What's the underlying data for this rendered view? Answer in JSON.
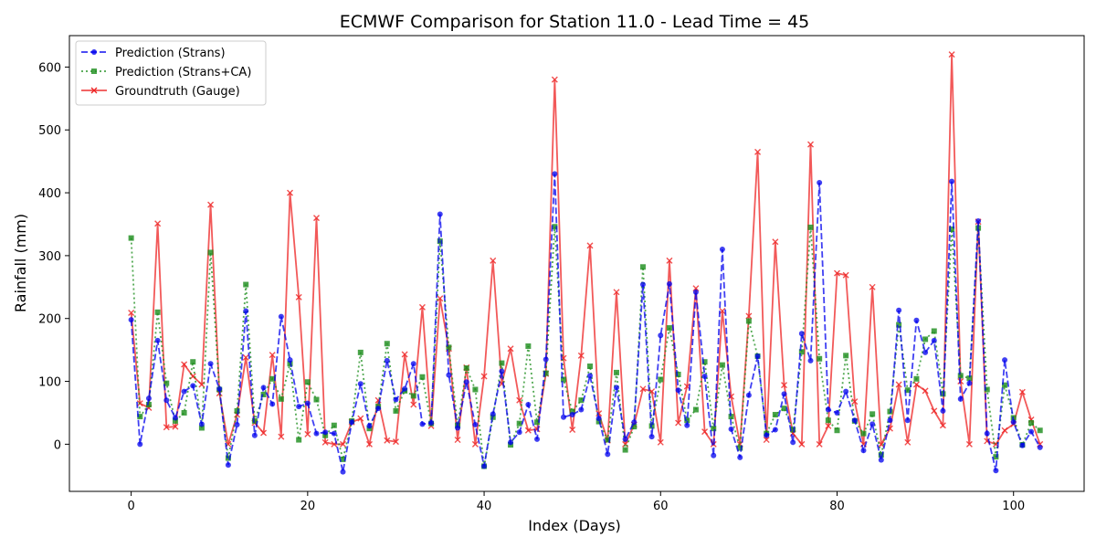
{
  "chart_data": {
    "type": "line",
    "title": "ECMWF Comparison for Station 11.0 - Lead Time = 45",
    "xlabel": "Index (Days)",
    "ylabel": "Rainfall (mm)",
    "xlim": [
      -7,
      108
    ],
    "ylim": [
      -75,
      650
    ],
    "xticks": [
      0,
      20,
      40,
      60,
      80,
      100
    ],
    "yticks": [
      0,
      100,
      200,
      300,
      400,
      500,
      600
    ],
    "grid": false,
    "legend_position": "upper-left",
    "series": [
      {
        "name": "Prediction (Strans)",
        "color": "#0000ee",
        "style": "dashed",
        "marker": "circle",
        "values": [
          198,
          0,
          73,
          165,
          70,
          42,
          84,
          93,
          32,
          128,
          88,
          -33,
          31,
          212,
          14,
          90,
          64,
          203,
          134,
          60,
          65,
          17,
          19,
          17,
          -44,
          35,
          96,
          29,
          57,
          133,
          71,
          88,
          128,
          32,
          34,
          366,
          110,
          26,
          99,
          31,
          -35,
          48,
          116,
          3,
          19,
          63,
          8,
          135,
          430,
          43,
          47,
          55,
          109,
          41,
          -16,
          90,
          8,
          35,
          254,
          12,
          173,
          255,
          86,
          30,
          242,
          108,
          -18,
          310,
          24,
          -21,
          78,
          140,
          14,
          23,
          80,
          3,
          176,
          133,
          416,
          55,
          50,
          84,
          38,
          -10,
          32,
          -25,
          38,
          213,
          38,
          197,
          146,
          165,
          53,
          418,
          72,
          97,
          355,
          17,
          -42,
          134,
          35,
          -2,
          20,
          -5
        ]
      },
      {
        "name": "Prediction (Strans+CA)",
        "color": "#1a8c1a",
        "style": "dotted",
        "marker": "square",
        "values": [
          328,
          44,
          63,
          210,
          97,
          37,
          50,
          131,
          26,
          305,
          87,
          -22,
          53,
          254,
          37,
          79,
          104,
          72,
          128,
          7,
          99,
          71,
          14,
          30,
          -24,
          37,
          146,
          25,
          60,
          160,
          53,
          85,
          77,
          107,
          33,
          323,
          154,
          30,
          121,
          87,
          -35,
          43,
          129,
          -1,
          33,
          156,
          35,
          113,
          346,
          103,
          52,
          70,
          124,
          36,
          7,
          114,
          -9,
          28,
          282,
          29,
          103,
          185,
          111,
          38,
          55,
          131,
          25,
          126,
          44,
          -6,
          196,
          140,
          17,
          47,
          57,
          23,
          147,
          345,
          136,
          38,
          22,
          141,
          37,
          17,
          48,
          -17,
          52,
          190,
          86,
          104,
          167,
          180,
          80,
          342,
          109,
          105,
          344,
          87,
          -20,
          94,
          42,
          -1,
          34,
          22
        ]
      },
      {
        "name": "Groundtruth (Gauge)",
        "color": "#ee2222",
        "style": "solid",
        "marker": "x",
        "values": [
          209,
          65,
          58,
          351,
          27,
          28,
          127,
          108,
          95,
          381,
          81,
          0,
          47,
          138,
          34,
          18,
          142,
          12,
          400,
          234,
          16,
          360,
          3,
          0,
          0,
          35,
          41,
          0,
          70,
          6,
          4,
          143,
          63,
          218,
          29,
          232,
          152,
          7,
          122,
          0,
          108,
          292,
          96,
          152,
          70,
          22,
          24,
          112,
          580,
          137,
          23,
          141,
          316,
          49,
          6,
          242,
          0,
          31,
          88,
          84,
          3,
          292,
          34,
          92,
          248,
          20,
          0,
          212,
          76,
          0,
          204,
          465,
          7,
          322,
          94,
          17,
          0,
          477,
          0,
          29,
          272,
          269,
          68,
          0,
          250,
          0,
          25,
          95,
          3,
          95,
          85,
          53,
          30,
          620,
          100,
          0,
          354,
          5,
          0,
          22,
          32,
          83,
          39,
          0
        ]
      }
    ]
  }
}
